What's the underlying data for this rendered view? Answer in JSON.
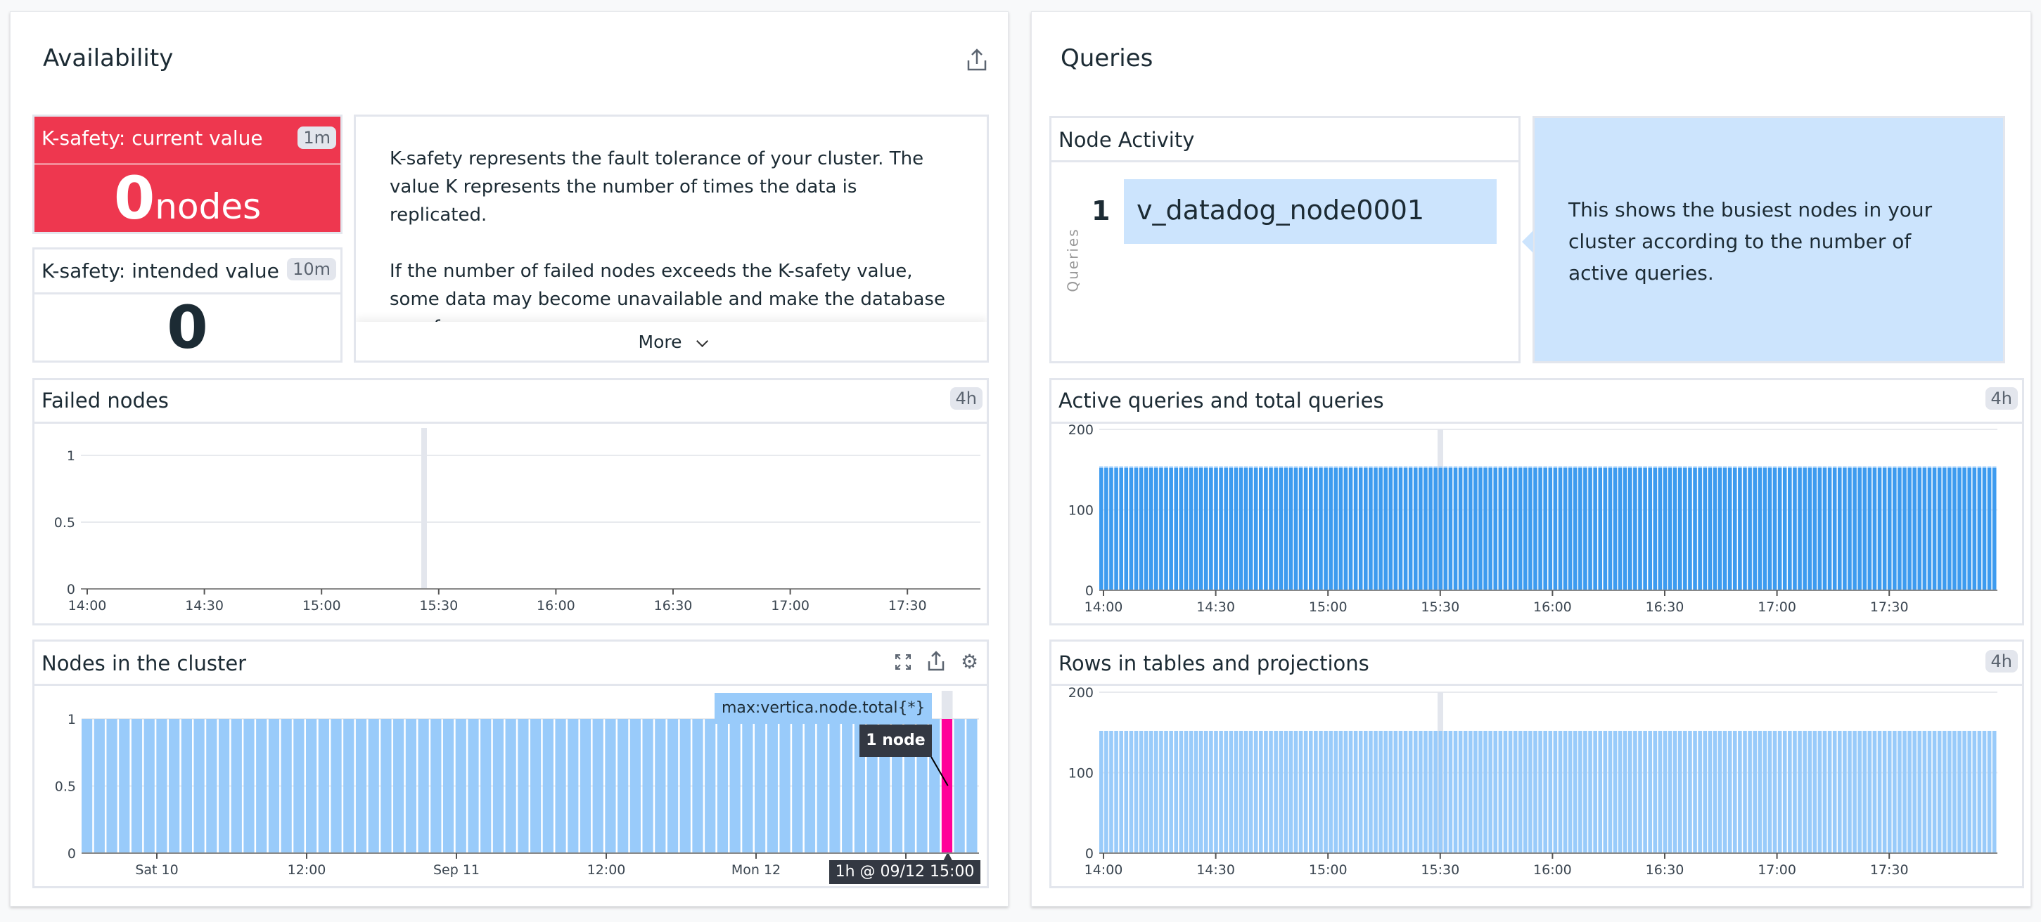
{
  "availability": {
    "title": "Availability",
    "share_icon": "share-icon",
    "k_current": {
      "title": "K-safety: current value",
      "badge": "1m",
      "value": "0",
      "unit": "nodes",
      "color": "#ee374f"
    },
    "k_intended": {
      "title": "K-safety: intended value",
      "badge": "10m",
      "value": "0"
    },
    "note": {
      "p1": "K-safety represents the fault tolerance of your cluster. The value K represents the number of times the data is replicated.",
      "p2": "If the number of failed nodes exceeds the K-safety value, some data may become unavailable and make the database unsafe.",
      "more_label": "More"
    },
    "failed_nodes": {
      "title": "Failed nodes",
      "badge": "4h"
    },
    "nodes_cluster": {
      "title": "Nodes in the cluster",
      "tooltip_metric": "max:vertica.node.total{*}",
      "tooltip_value": "1 node",
      "tooltip_time": "1h @ 09/12 15:00"
    }
  },
  "queries": {
    "title": "Queries",
    "node_activity": {
      "title": "Node Activity",
      "axis_label": "Queries",
      "rank": "1",
      "node": "v_datadog_node0001"
    },
    "callout": "This shows the busiest nodes in your cluster according to the number of active queries.",
    "active_total": {
      "title": "Active queries and total queries",
      "badge": "4h"
    },
    "rows": {
      "title": "Rows in tables and projections",
      "badge": "4h"
    }
  },
  "chart_data": [
    {
      "id": "failed",
      "type": "line",
      "title": "Failed nodes",
      "x_ticks": [
        "14:00",
        "14:30",
        "15:00",
        "15:30",
        "16:00",
        "16:30",
        "17:00",
        "17:30"
      ],
      "y_ticks": [
        "0",
        "0.5",
        "1"
      ],
      "ylim": [
        0,
        1.2
      ],
      "series": [
        {
          "name": "failed nodes",
          "values": []
        }
      ],
      "hover_x": "15:30"
    },
    {
      "id": "nodes",
      "type": "bar",
      "title": "Nodes in the cluster",
      "x_ticks": [
        "Sat 10",
        "12:00",
        "Sep 11",
        "12:00",
        "Mon 12",
        ""
      ],
      "y_ticks": [
        "0",
        "0.5",
        "1"
      ],
      "ylim": [
        0,
        1.2
      ],
      "points": 72,
      "series": [
        {
          "name": "max:vertica.node.total{*}",
          "constant_value": 1,
          "color": "#99cbfa"
        }
      ],
      "highlight_index": 69,
      "highlight_color": "#ff0099"
    },
    {
      "id": "active",
      "type": "bar",
      "title": "Active queries and total queries",
      "x_ticks": [
        "14:00",
        "14:30",
        "15:00",
        "15:30",
        "16:00",
        "16:30",
        "17:00",
        "17:30"
      ],
      "y_ticks": [
        "0",
        "100",
        "200"
      ],
      "ylim": [
        0,
        200
      ],
      "points": 180,
      "series": [
        {
          "name": "total queries",
          "constant_value": 152,
          "color": "#3d9bef"
        },
        {
          "name": "active queries",
          "constant_value": 2,
          "color": "#99cbfa"
        }
      ],
      "hover_x": "15:30"
    },
    {
      "id": "rows",
      "type": "bar",
      "title": "Rows in tables and projections",
      "x_ticks": [
        "14:00",
        "14:30",
        "15:00",
        "15:30",
        "16:00",
        "16:30",
        "17:00",
        "17:30"
      ],
      "y_ticks": [
        "0",
        "100",
        "200"
      ],
      "ylim": [
        0,
        200
      ],
      "points": 180,
      "series": [
        {
          "name": "rows",
          "constant_value": 152,
          "color": "#99cbfa"
        }
      ],
      "hover_x": "15:30"
    }
  ]
}
